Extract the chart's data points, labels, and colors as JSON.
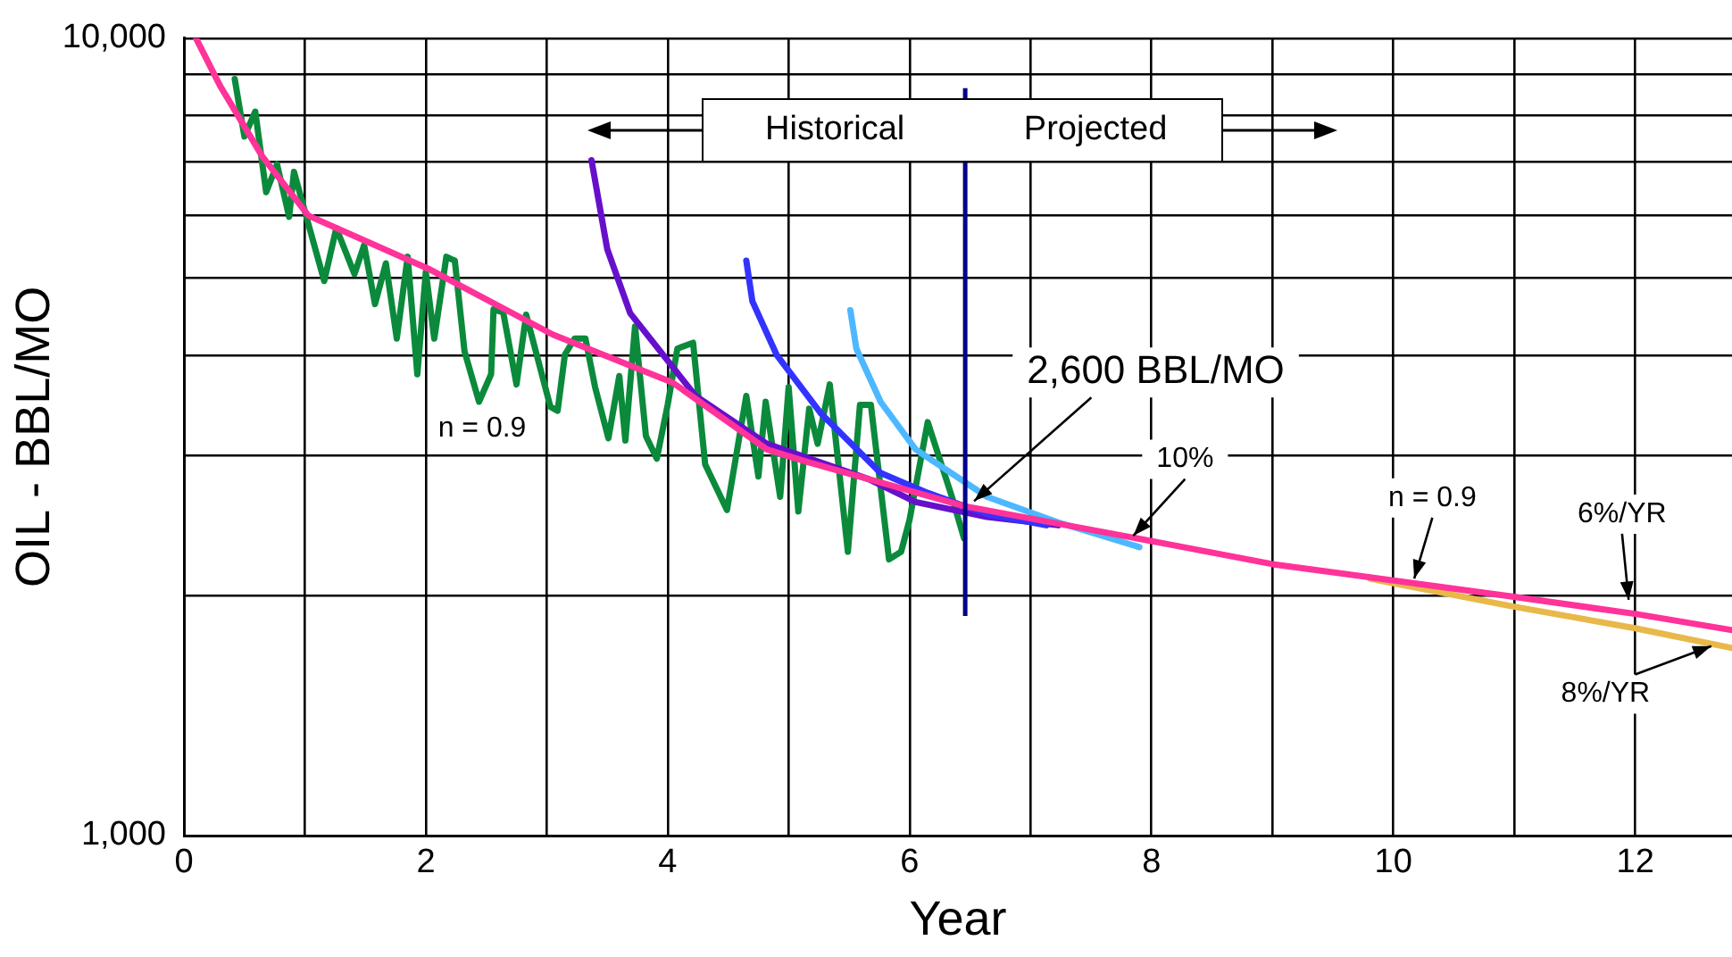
{
  "chart_data": {
    "type": "line",
    "xlabel": "Year",
    "ylabel": "OIL - BBL/MO",
    "log": true,
    "grid": true,
    "marker": "none",
    "line_style": "solid",
    "xlim": [
      0,
      12.8
    ],
    "xticks": [
      0,
      {
        "value": 1,
        "label": null
      },
      2,
      {
        "value": 3,
        "label": null
      },
      4,
      {
        "value": 5,
        "label": null
      },
      6,
      {
        "value": 7,
        "label": null
      },
      8,
      {
        "value": 9,
        "label": null
      },
      10,
      {
        "value": 11,
        "label": null
      },
      12
    ],
    "ylim": [
      1000,
      10000
    ],
    "yticks": [
      {
        "value": 1000,
        "label": "1,000"
      },
      {
        "value": 2000,
        "label": null
      },
      {
        "value": 3000,
        "label": null
      },
      {
        "value": 4000,
        "label": null
      },
      {
        "value": 5000,
        "label": null
      },
      {
        "value": 6000,
        "label": null
      },
      {
        "value": 7000,
        "label": null
      },
      {
        "value": 8000,
        "label": null
      },
      {
        "value": 9000,
        "label": null
      },
      {
        "value": 10000,
        "label": "10,000"
      }
    ],
    "series": [
      {
        "color": "#0b8a3c",
        "x": [
          0.42,
          0.5,
          0.59,
          0.68,
          0.77,
          0.87,
          0.91,
          1.01,
          1.16,
          1.26,
          1.41,
          1.49,
          1.58,
          1.67,
          1.76,
          1.85,
          1.93,
          2.0,
          2.07,
          2.17,
          2.24,
          2.32,
          2.44,
          2.54,
          2.56,
          2.64,
          2.75,
          2.83,
          3.03,
          3.09,
          3.15,
          3.23,
          3.32,
          3.4,
          3.51,
          3.6,
          3.65,
          3.73,
          3.82,
          3.91,
          4.0,
          4.08,
          4.21,
          4.31,
          4.49,
          4.65,
          4.75,
          4.81,
          4.93,
          5.0,
          5.08,
          5.17,
          5.24,
          5.34,
          5.49,
          5.59,
          5.68,
          5.83,
          5.93,
          6.0,
          6.15,
          6.35,
          6.45
        ],
        "values": [
          8890,
          7530,
          8090,
          6410,
          6950,
          5970,
          6800,
          5990,
          4960,
          5780,
          5060,
          5500,
          4640,
          5220,
          4200,
          5320,
          3790,
          5090,
          4200,
          5320,
          5260,
          4050,
          3500,
          3790,
          4570,
          4530,
          3680,
          4500,
          3450,
          3410,
          4010,
          4200,
          4200,
          3650,
          3150,
          3770,
          3130,
          4350,
          3170,
          2970,
          3470,
          4080,
          4150,
          2920,
          2560,
          3560,
          2820,
          3500,
          2660,
          3650,
          2550,
          3430,
          3100,
          3680,
          2270,
          3470,
          3470,
          2220,
          2270,
          2490,
          3300,
          2660,
          2360
        ]
      },
      {
        "color": "#6610cc",
        "x": [
          3.37,
          3.5,
          3.69,
          4.23,
          4.82,
          5.66,
          6.05,
          6.64,
          7.23
        ],
        "values": [
          7030,
          5440,
          4520,
          3560,
          3100,
          2800,
          2620,
          2510,
          2450
        ]
      },
      {
        "color": "#3333ff",
        "x": [
          4.65,
          4.7,
          4.9,
          5.27,
          5.76,
          6.15,
          6.64,
          7.13
        ],
        "values": [
          5260,
          4680,
          4010,
          3380,
          2850,
          2690,
          2530,
          2450
        ]
      },
      {
        "color": "#4db8ff",
        "x": [
          5.51,
          5.56,
          5.76,
          6.05,
          6.64,
          7.23,
          7.9
        ],
        "values": [
          4560,
          4080,
          3500,
          3050,
          2660,
          2470,
          2300
        ]
      },
      {
        "color": "#e8b84a",
        "x": [
          9.81,
          10.97,
          12.0,
          12.79
        ],
        "values": [
          2100,
          1940,
          1820,
          1720
        ]
      },
      {
        "color": "#ff3399",
        "x": [
          0.1,
          0.3,
          0.65,
          1.03,
          2.02,
          3.05,
          4.04,
          4.82,
          5.16,
          6.45,
          8.07,
          9.0,
          10.97,
          12.0,
          12.79
        ],
        "values": [
          10000,
          8710,
          7100,
          5990,
          5140,
          4250,
          3700,
          3050,
          2940,
          2590,
          2330,
          2190,
          1995,
          1897,
          1811
        ]
      }
    ],
    "ref_lines": [
      {
        "axis": "x",
        "value": 6.46,
        "color": "#00008b"
      }
    ],
    "annotations": [
      "Historical",
      "Projected",
      "n = 0.9",
      {
        "text": "2,600 BBL/MO",
        "x": 6.5,
        "y": 2600
      },
      {
        "text": "10%",
        "x": 7.82,
        "y": 2350
      },
      {
        "text": "n = 0.9",
        "x": 10.16,
        "y": 2070
      },
      {
        "text": "6%/YR",
        "x": 11.95,
        "y": 1945
      },
      {
        "text": "8%/YR",
        "x": 12.67,
        "y": 1738
      }
    ]
  }
}
